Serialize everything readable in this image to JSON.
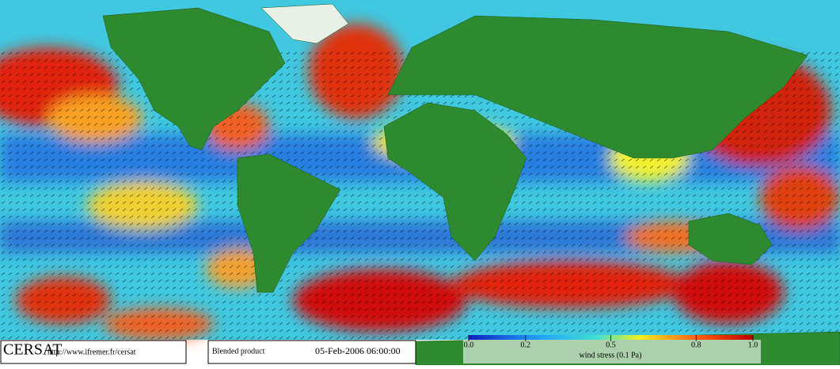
{
  "footer": {
    "logo": "CERSAT",
    "url": "http://www.ifremer.fr/cersat",
    "product": "Blended product",
    "date": "05-Feb-2006 06:00:00"
  },
  "colorbar": {
    "lim": [
      0,
      1
    ],
    "ticks": [
      {
        "value": 0,
        "label": "0.0"
      },
      0.2,
      0.5,
      0.8,
      {
        "value": 1,
        "label": "1.0"
      }
    ],
    "label": "wind stress (0.1 Pa)"
  }
}
